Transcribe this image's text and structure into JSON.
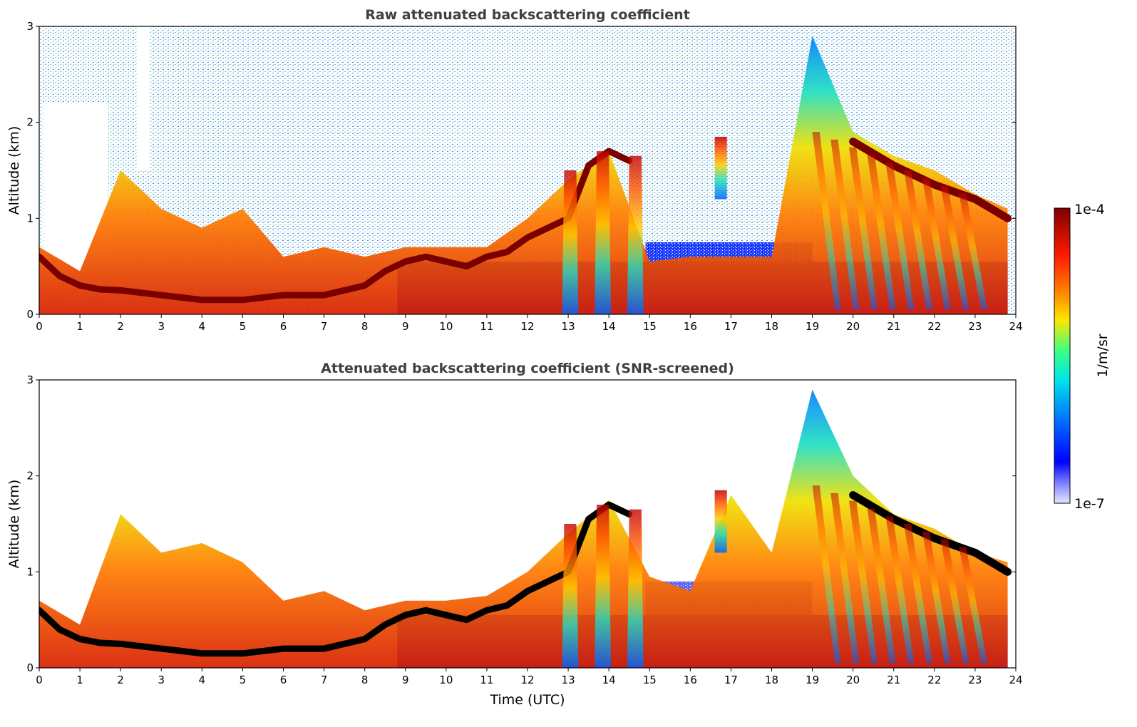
{
  "colors": {
    "colormap": "jet",
    "low_stop": "#e6e6ff",
    "mid_stop": "#ffe600",
    "high_stop": "#800000",
    "axis": "#000000",
    "title": "#404040"
  },
  "panels": [
    {
      "title": "Raw attenuated backscattering coefficient",
      "ylabel": "Altitude (km)",
      "xlabel": "",
      "yticks": [
        "0",
        "1",
        "2",
        "3"
      ],
      "xticks": [
        "0",
        "1",
        "2",
        "3",
        "4",
        "5",
        "6",
        "7",
        "8",
        "9",
        "10",
        "11",
        "12",
        "13",
        "14",
        "15",
        "16",
        "17",
        "18",
        "19",
        "20",
        "21",
        "22",
        "23",
        "24"
      ]
    },
    {
      "title": "Attenuated backscattering coefficient (SNR-screened)",
      "ylabel": "Altitude (km)",
      "xlabel": "Time (UTC)",
      "yticks": [
        "0",
        "1",
        "2",
        "3"
      ],
      "xticks": [
        "0",
        "1",
        "2",
        "3",
        "4",
        "5",
        "6",
        "7",
        "8",
        "9",
        "10",
        "11",
        "12",
        "13",
        "14",
        "15",
        "16",
        "17",
        "18",
        "19",
        "20",
        "21",
        "22",
        "23",
        "24"
      ]
    }
  ],
  "colorbar": {
    "label": "1/m/sr",
    "max_label": "1e-4",
    "min_label": "1e-7"
  },
  "chart_data": [
    {
      "type": "heatmap",
      "title": "Raw attenuated backscattering coefficient",
      "xlabel": "",
      "ylabel": "Altitude (km)",
      "xlim": [
        0,
        24
      ],
      "ylim": [
        0,
        3
      ],
      "color_scale": "log",
      "clim": [
        1e-07,
        0.0001
      ],
      "colorbar_label": "1/m/sr",
      "layers": [
        {
          "name": "boundary_layer_top_km",
          "time_utc": [
            0,
            0.5,
            1,
            1.5,
            2,
            3,
            4,
            5,
            6,
            7,
            8,
            8.5,
            9,
            9.5,
            10,
            10.5,
            11,
            11.5,
            12,
            12.5,
            13,
            13.5,
            14,
            14.5,
            20,
            21,
            22,
            23,
            23.8
          ],
          "altitude_km": [
            0.6,
            0.4,
            0.3,
            0.26,
            0.25,
            0.2,
            0.15,
            0.15,
            0.2,
            0.2,
            0.3,
            0.45,
            0.55,
            0.6,
            0.55,
            0.5,
            0.6,
            0.65,
            0.8,
            0.9,
            1.0,
            1.55,
            1.7,
            1.6,
            1.8,
            1.55,
            1.35,
            1.2,
            1.0
          ]
        },
        {
          "name": "aerosol_top_km",
          "time_utc": [
            0,
            1,
            2,
            3,
            4,
            5,
            6,
            7,
            8,
            9,
            10,
            11,
            12,
            13,
            14,
            15,
            16,
            17,
            18,
            19,
            20,
            21,
            22,
            23,
            23.8
          ],
          "altitude_km": [
            0.7,
            0.45,
            1.5,
            1.1,
            0.9,
            1.1,
            0.6,
            0.7,
            0.6,
            0.7,
            0.7,
            0.7,
            1.0,
            1.4,
            1.7,
            0.55,
            0.6,
            0.6,
            0.6,
            2.9,
            1.9,
            1.65,
            1.5,
            1.25,
            1.1
          ]
        }
      ]
    },
    {
      "type": "heatmap",
      "title": "Attenuated backscattering coefficient (SNR-screened)",
      "xlabel": "Time (UTC)",
      "ylabel": "Altitude (km)",
      "xlim": [
        0,
        24
      ],
      "ylim": [
        0,
        3
      ],
      "color_scale": "log",
      "clim": [
        1e-07,
        0.0001
      ],
      "colorbar_label": "1/m/sr",
      "layers": [
        {
          "name": "boundary_layer_top_km",
          "time_utc": [
            0,
            0.5,
            1,
            1.5,
            2,
            3,
            4,
            5,
            6,
            7,
            8,
            8.5,
            9,
            9.5,
            10,
            10.5,
            11,
            11.5,
            12,
            12.5,
            13,
            13.5,
            14,
            14.5,
            20,
            21,
            22,
            23,
            23.8
          ],
          "altitude_km": [
            0.6,
            0.4,
            0.3,
            0.26,
            0.25,
            0.2,
            0.15,
            0.15,
            0.2,
            0.2,
            0.3,
            0.45,
            0.55,
            0.6,
            0.55,
            0.5,
            0.6,
            0.65,
            0.8,
            0.9,
            1.0,
            1.55,
            1.7,
            1.6,
            1.8,
            1.55,
            1.35,
            1.2,
            1.0
          ]
        },
        {
          "name": "aerosol_top_km",
          "time_utc": [
            0,
            1,
            2,
            3,
            4,
            5,
            6,
            7,
            8,
            9,
            10,
            11,
            12,
            13,
            14,
            15,
            16,
            17,
            18,
            19,
            20,
            21,
            22,
            23,
            23.8
          ],
          "altitude_km": [
            0.7,
            0.45,
            1.6,
            1.2,
            1.3,
            1.1,
            0.7,
            0.8,
            0.6,
            0.7,
            0.7,
            0.75,
            1.0,
            1.4,
            1.75,
            0.95,
            0.8,
            1.8,
            1.2,
            2.9,
            2.0,
            1.6,
            1.45,
            1.2,
            1.1
          ]
        }
      ]
    }
  ]
}
